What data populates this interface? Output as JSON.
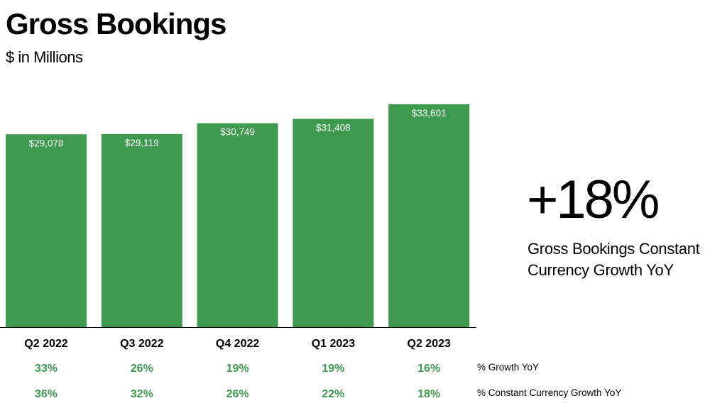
{
  "title": "Gross Bookings",
  "subtitle": "$ in Millions",
  "highlight": {
    "value": "+18%",
    "caption": "Gross Bookings Constant Currency Growth YoY"
  },
  "colors": {
    "bar": "#3d9a4f",
    "growth_text": "#3d9a4f",
    "axis": "#000000"
  },
  "chart_data": {
    "type": "bar",
    "categories": [
      "Q2 2022",
      "Q3 2022",
      "Q4 2022",
      "Q1 2023",
      "Q2 2023"
    ],
    "values": [
      29078,
      29119,
      30749,
      31408,
      33601
    ],
    "value_labels": [
      "$29,078",
      "$29,119",
      "$30,749",
      "$31,408",
      "$33,601"
    ],
    "title": "Gross Bookings",
    "subtitle": "$ in Millions",
    "ylim": [
      0,
      33601
    ],
    "grid": false,
    "legend": "none",
    "rows": [
      {
        "label": "% Growth YoY",
        "values": [
          "33%",
          "26%",
          "19%",
          "19%",
          "16%"
        ]
      },
      {
        "label": "% Constant Currency Growth YoY",
        "values": [
          "36%",
          "32%",
          "26%",
          "22%",
          "18%"
        ]
      }
    ]
  }
}
